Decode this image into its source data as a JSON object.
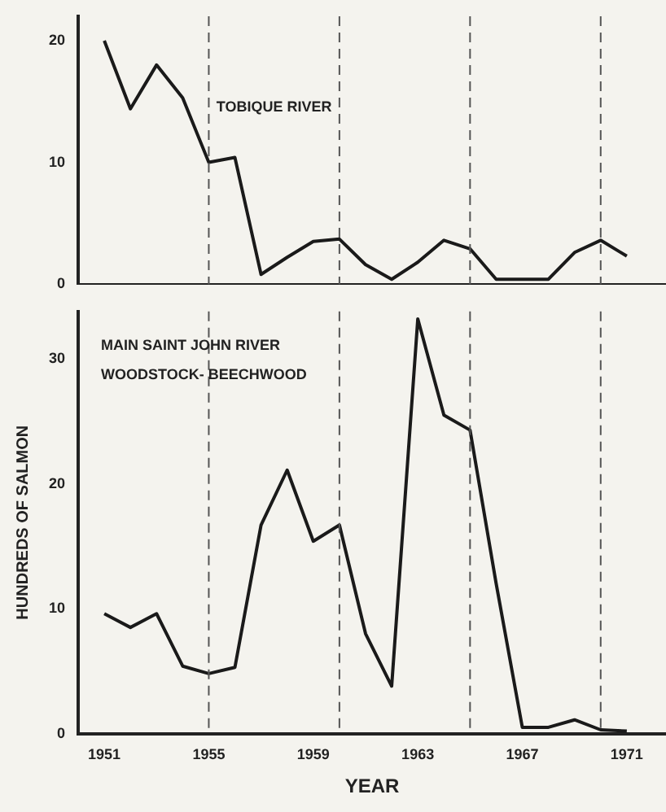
{
  "chart_data": [
    {
      "type": "line",
      "annotations": [
        "TOBIQUE RIVER"
      ],
      "x": [
        1951,
        1952,
        1953,
        1954,
        1955,
        1956,
        1957,
        1958,
        1959,
        1960,
        1961,
        1962,
        1963,
        1964,
        1965,
        1966,
        1967,
        1968,
        1969,
        1970,
        1971
      ],
      "series": [
        {
          "color": "#1a1a1a",
          "values": [
            20,
            14.4,
            18,
            15.3,
            10,
            10.4,
            0.8,
            2.2,
            3.5,
            3.7,
            1.6,
            0.4,
            1.8,
            3.6,
            2.9,
            0.4,
            0.4,
            0.4,
            2.6,
            3.6,
            2.3
          ]
        }
      ],
      "xlim": [
        1950,
        1972.5
      ],
      "ylim": [
        0,
        22
      ],
      "yticks": [
        0,
        10,
        20
      ],
      "tick_labels": "y",
      "grid": false,
      "legend": false,
      "marker": "none",
      "line_style": "solid",
      "ref_lines": [
        {
          "axis": "x",
          "value": 1955,
          "line_style": "dashed"
        },
        {
          "axis": "x",
          "value": 1960,
          "line_style": "dashed"
        },
        {
          "axis": "x",
          "value": 1965,
          "line_style": "dashed"
        },
        {
          "axis": "x",
          "value": 1970,
          "line_style": "dashed"
        }
      ]
    },
    {
      "type": "line",
      "xlabel": "YEAR",
      "ylabel": "HUNDREDS OF SALMON",
      "annotations": [
        "MAIN SAINT JOHN RIVER",
        "WOODSTOCK- BEECHWOOD"
      ],
      "x": [
        1951,
        1952,
        1953,
        1954,
        1955,
        1956,
        1957,
        1958,
        1959,
        1960,
        1961,
        1962,
        1963,
        1964,
        1965,
        1966,
        1967,
        1968,
        1969,
        1970,
        1971
      ],
      "series": [
        {
          "color": "#1a1a1a",
          "values": [
            9.6,
            8.5,
            9.6,
            5.4,
            4.8,
            5.3,
            16.7,
            21.1,
            15.4,
            16.7,
            8,
            3.8,
            33.2,
            25.5,
            24.3,
            12,
            0.5,
            0.5,
            1.1,
            0.3,
            0.2
          ]
        }
      ],
      "xlim": [
        1950,
        1972.5
      ],
      "xticks": [
        1951,
        1955,
        1959,
        1963,
        1967,
        1971
      ],
      "ylim": [
        0,
        33.8
      ],
      "yticks": [
        0,
        10,
        20,
        30
      ],
      "grid": false,
      "legend": false,
      "marker": "none",
      "line_style": "solid",
      "ref_lines": [
        {
          "axis": "x",
          "value": 1955,
          "line_style": "dashed"
        },
        {
          "axis": "x",
          "value": 1960,
          "line_style": "dashed"
        },
        {
          "axis": "x",
          "value": 1965,
          "line_style": "dashed"
        },
        {
          "axis": "x",
          "value": 1970,
          "line_style": "dashed"
        }
      ]
    }
  ]
}
